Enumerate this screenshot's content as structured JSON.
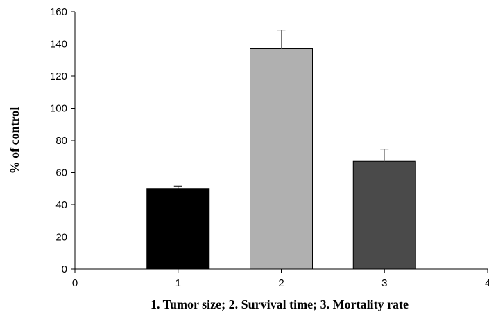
{
  "chart_data": {
    "type": "bar",
    "title": "",
    "xlabel": "1. Tumor size; 2. Survival time; 3. Mortality rate",
    "ylabel": "% of control",
    "xlim": [
      0,
      4
    ],
    "ylim": [
      0,
      160
    ],
    "x_ticks": [
      "0",
      "1",
      "2",
      "3",
      "4"
    ],
    "y_ticks": [
      "0",
      "20",
      "40",
      "60",
      "80",
      "100",
      "120",
      "140",
      "160"
    ],
    "grid": false,
    "legend": "none",
    "bars": [
      {
        "x": 1,
        "value": 50,
        "error": 1.5,
        "color": "#000000"
      },
      {
        "x": 2,
        "value": 137,
        "error": 11.5,
        "color": "#b0b0b0"
      },
      {
        "x": 3,
        "value": 67,
        "error": 7.5,
        "color": "#4a4a4a"
      }
    ]
  }
}
